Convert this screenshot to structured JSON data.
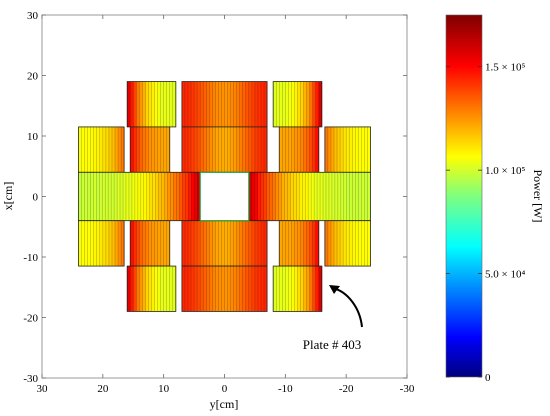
{
  "chart_data": {
    "type": "heatmap",
    "title": "",
    "xlabel": "y[cm]",
    "ylabel": "x[cm]",
    "xlim": [
      30,
      -30
    ],
    "ylim": [
      -30,
      30
    ],
    "x_ticks": [
      "30",
      "20",
      "10",
      "0",
      "-10",
      "-20",
      "-30"
    ],
    "y_ticks": [
      "30",
      "20",
      "10",
      "0",
      "-10",
      "-20",
      "-30"
    ],
    "grid": false,
    "colorbar": {
      "label": "Power [W]",
      "range": [
        0,
        175000
      ],
      "tick_labels": [
        "0",
        "5.0 × 10⁴",
        "1.0 × 10⁵",
        "1.5 × 10⁵"
      ],
      "tick_values": [
        0,
        50000,
        100000,
        150000
      ],
      "colormap": "jet"
    },
    "annotation": {
      "text": "Plate # 403",
      "points_to": {
        "y": -16,
        "x": -12
      }
    },
    "assemblies": [
      {
        "name": "top-left",
        "y0": 16,
        "y1": 8,
        "x0": 11.5,
        "x1": 19,
        "low": 95000,
        "high": 175000,
        "hot_side": "left"
      },
      {
        "name": "top-center",
        "y0": 7,
        "y1": -7,
        "x0": 11.5,
        "x1": 19,
        "low": 125000,
        "high": 150000,
        "hot_side": "none"
      },
      {
        "name": "top-right",
        "y0": -8,
        "y1": -16,
        "x0": 11.5,
        "x1": 19,
        "low": 95000,
        "high": 175000,
        "hot_side": "right"
      },
      {
        "name": "upper-far-left",
        "y0": 24,
        "y1": 16.5,
        "x0": 4,
        "x1": 11.5,
        "low": 105000,
        "high": 140000,
        "hot_side": "right"
      },
      {
        "name": "upper-left",
        "y0": 15.5,
        "y1": 9,
        "x0": 4,
        "x1": 11.5,
        "low": 120000,
        "high": 160000,
        "hot_side": "left"
      },
      {
        "name": "upper-center",
        "y0": 7,
        "y1": -7,
        "x0": 4,
        "x1": 11.5,
        "low": 120000,
        "high": 150000,
        "hot_side": "none"
      },
      {
        "name": "upper-right",
        "y0": -9,
        "y1": -15.5,
        "x0": 4,
        "x1": 11.5,
        "low": 120000,
        "high": 160000,
        "hot_side": "right"
      },
      {
        "name": "upper-far-right",
        "y0": -16.5,
        "y1": -24,
        "x0": 4,
        "x1": 11.5,
        "low": 105000,
        "high": 140000,
        "hot_side": "left"
      },
      {
        "name": "middle-left",
        "y0": 24,
        "y1": 4,
        "x0": -4,
        "x1": 4,
        "low": 90000,
        "high": 175000,
        "hot_side": "right"
      },
      {
        "name": "middle-right",
        "y0": -4,
        "y1": -24,
        "x0": -4,
        "x1": 4,
        "low": 90000,
        "high": 175000,
        "hot_side": "left"
      },
      {
        "name": "lower-far-left",
        "y0": 24,
        "y1": 16.5,
        "x0": -11.5,
        "x1": -4,
        "low": 105000,
        "high": 140000,
        "hot_side": "right"
      },
      {
        "name": "lower-left",
        "y0": 15.5,
        "y1": 9,
        "x0": -11.5,
        "x1": -4,
        "low": 120000,
        "high": 160000,
        "hot_side": "left"
      },
      {
        "name": "lower-center",
        "y0": 7,
        "y1": -7,
        "x0": -11.5,
        "x1": -4,
        "low": 120000,
        "high": 150000,
        "hot_side": "none"
      },
      {
        "name": "lower-right",
        "y0": -9,
        "y1": -15.5,
        "x0": -11.5,
        "x1": -4,
        "low": 120000,
        "high": 160000,
        "hot_side": "right"
      },
      {
        "name": "lower-far-right",
        "y0": -16.5,
        "y1": -24,
        "x0": -11.5,
        "x1": -4,
        "low": 105000,
        "high": 140000,
        "hot_side": "left"
      },
      {
        "name": "bottom-left",
        "y0": 16,
        "y1": 8,
        "x0": -19,
        "x1": -11.5,
        "low": 95000,
        "high": 175000,
        "hot_side": "left"
      },
      {
        "name": "bottom-center",
        "y0": 7,
        "y1": -7,
        "x0": -19,
        "x1": -11.5,
        "low": 125000,
        "high": 150000,
        "hot_side": "none"
      },
      {
        "name": "bottom-right",
        "y0": -8,
        "y1": -16,
        "x0": -19,
        "x1": -11.5,
        "low": 95000,
        "high": 175000,
        "hot_side": "right"
      }
    ]
  }
}
